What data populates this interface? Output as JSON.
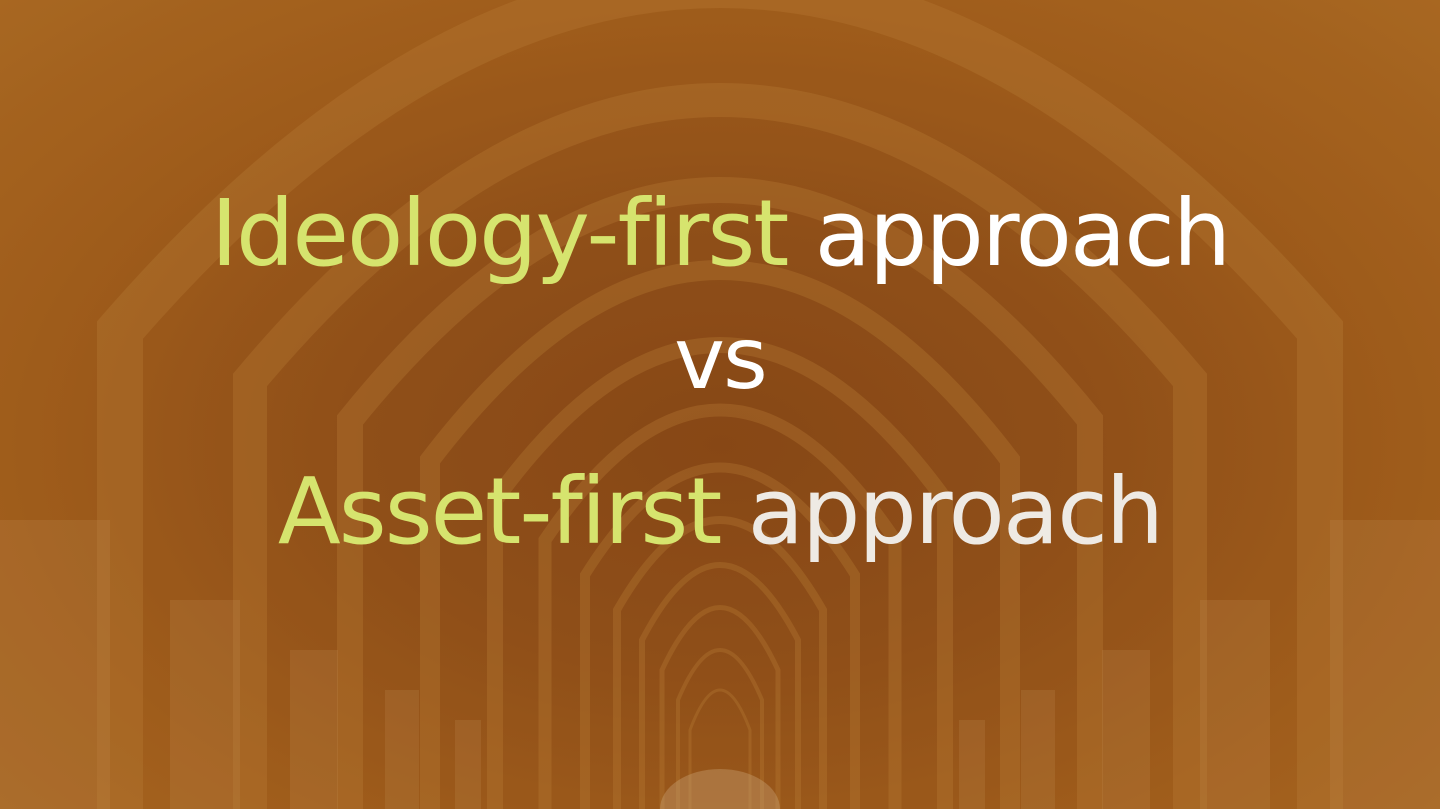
{
  "headline": {
    "line1": {
      "accent": "Ideology-first",
      "rest": "approach"
    },
    "line2": {
      "text": "vs"
    },
    "line3": {
      "accent": "Asset-first",
      "rest": "approach"
    }
  },
  "colors": {
    "accent": "#d6e46e",
    "text": "#ffffff",
    "background": "#94531c"
  }
}
